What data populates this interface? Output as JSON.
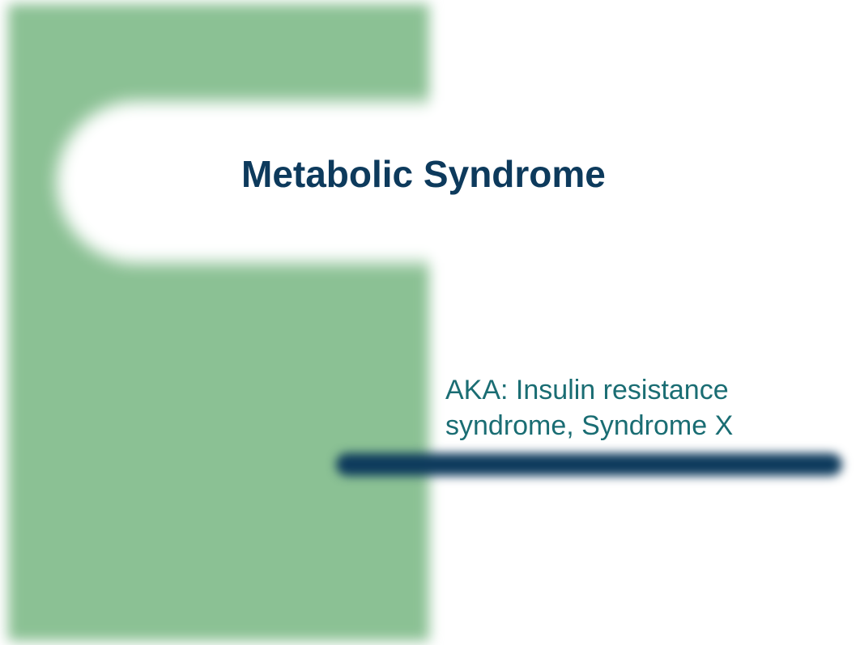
{
  "slide": {
    "title": "Metabolic Syndrome",
    "subtitle": "AKA: Insulin resistance syndrome, Syndrome X",
    "title_color": "#0d3a5c",
    "subtitle_color": "#1a6d73",
    "title_fontsize": 46,
    "subtitle_fontsize": 34,
    "background_color": "#ffffff",
    "accent_shape_color": "#8bc194",
    "bar_color": "#0d3a5c"
  }
}
